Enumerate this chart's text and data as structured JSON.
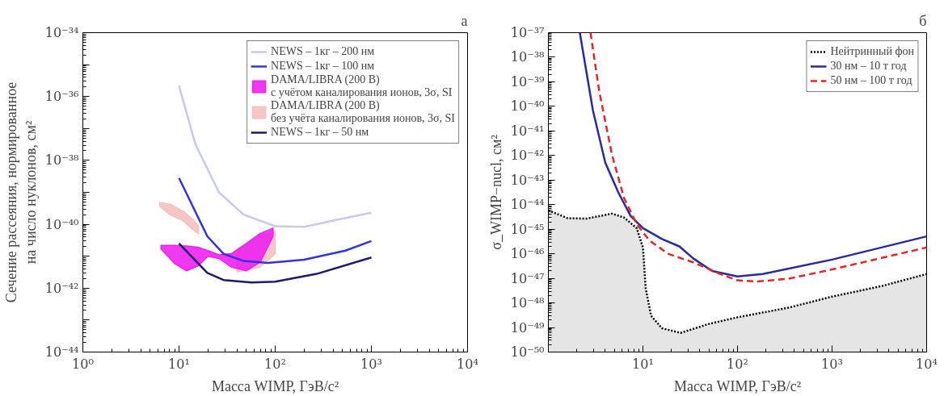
{
  "chart_data": [
    {
      "type": "line",
      "title": "а",
      "xlabel": "Масса WIMP, ГэВ/c²",
      "ylabel": "Сечение рассеяния, нормированное\nна число нуклонов, см²",
      "log": "xy",
      "grid": false,
      "legend": "top right",
      "xlim": [
        1,
        10000
      ],
      "ylim": [
        1e-44,
        1e-34
      ],
      "xticks": [
        {
          "value": 1,
          "label": "10⁰"
        },
        {
          "value": 10,
          "label": "10¹"
        },
        {
          "value": 100,
          "label": "10²"
        },
        {
          "value": 1000,
          "label": "10³"
        },
        {
          "value": 10000,
          "label": "10⁴"
        }
      ],
      "yticks": [
        {
          "value": 1e-44,
          "label": "10⁻⁴⁴"
        },
        {
          "value": 1e-43,
          "label": null
        },
        {
          "value": 1e-42,
          "label": "10⁻⁴²"
        },
        {
          "value": 1e-41,
          "label": null
        },
        {
          "value": 1e-40,
          "label": "10⁻⁴⁰"
        },
        {
          "value": 1e-39,
          "label": null
        },
        {
          "value": 1e-38,
          "label": "10⁻³⁸"
        },
        {
          "value": 1e-37,
          "label": null
        },
        {
          "value": 1e-36,
          "label": "10⁻³⁶"
        },
        {
          "value": 1e-35,
          "label": null
        },
        {
          "value": 1e-34,
          "label": "10⁻³⁴"
        }
      ],
      "series": [
        {
          "name": "NEWS – 1кг – 200 нм",
          "color": "#c8c8f0",
          "x": [
            10,
            14.8,
            26,
            47,
            100,
            200,
            400,
            1000
          ],
          "values": [
            2.2e-36,
            3.2e-38,
            1e-39,
            2e-40,
            8.7e-41,
            8.3e-41,
            1.3e-40,
            2.3e-40
          ]
        },
        {
          "name": "NEWS – 1кг – 100 нм",
          "color": "#3333dd",
          "x": [
            10,
            19.7,
            29,
            47,
            84,
            200,
            537,
            1000
          ],
          "values": [
            2.8e-39,
            4.2e-41,
            1.2e-41,
            7.1e-42,
            6.2e-42,
            7.8e-42,
            1.5e-41,
            3e-41
          ]
        },
        {
          "name": "DAMA/LIBRA (200 В)\nс учётом каналирования ионов, 3σ, SI",
          "type": "area",
          "color": "#ee22ee",
          "x": [
            6.5,
            9,
            12,
            16,
            20,
            26,
            35,
            50,
            70,
            95,
            95,
            70,
            50,
            35,
            26,
            20,
            16,
            12,
            9,
            6.5
          ],
          "values": [
            2.2e-41,
            2.2e-41,
            2.1e-41,
            1.9e-41,
            1.5e-41,
            1.1e-41,
            1.2e-41,
            2.5e-41,
            5.2e-41,
            7.6e-41,
            4.2e-41,
            6.6e-42,
            3.5e-42,
            4.6e-42,
            8.5e-42,
            1e-41,
            5.1e-42,
            3.5e-42,
            5.9e-42,
            1.7e-41
          ]
        },
        {
          "name": "DAMA/LIBRA (200 В)\nбез учёта каналирования ионов, 3σ, SI",
          "type": "area",
          "color": "#f5c0c0",
          "x": [
            6.3,
            8,
            11,
            14,
            16,
            16,
            14,
            11,
            8,
            6.3,
            25,
            40,
            70,
            100,
            100,
            70,
            40
          ],
          "values": [
            4.8e-40,
            4.3e-40,
            2.6e-40,
            1.4e-40,
            8.7e-41,
            5e-41,
            6.8e-41,
            1.3e-40,
            2e-40,
            3.7e-40,
            null,
            1.5e-41,
            4.2e-41,
            6e-41,
            1.2e-41,
            4.6e-42,
            3.2e-42
          ]
        },
        {
          "name": "NEWS – 1кг – 50 нм",
          "color": "#1a1a70",
          "x": [
            10,
            19.7,
            29,
            57,
            100,
            270,
            1000
          ],
          "values": [
            2.5e-41,
            3e-42,
            1.8e-42,
            1.5e-42,
            1.6e-42,
            2.8e-42,
            9.1e-42
          ]
        }
      ]
    },
    {
      "type": "line",
      "title": "б",
      "xlabel": "Масса WIMP, ГэВ/c²",
      "ylabel": "σ_WIMP−nucl, см²",
      "log": "xy",
      "grid": false,
      "legend": "top right",
      "xlim": [
        1,
        10000
      ],
      "ylim": [
        1e-50,
        1e-37
      ],
      "xticks": [
        {
          "value": 10,
          "label": "10¹"
        },
        {
          "value": 100,
          "label": "10²"
        },
        {
          "value": 1000,
          "label": "10³"
        },
        {
          "value": 10000,
          "label": "10⁴"
        }
      ],
      "yticks": [
        {
          "value": 1e-50,
          "label": "10⁻⁵⁰"
        },
        {
          "value": 1e-49,
          "label": "10⁻⁴⁹"
        },
        {
          "value": 1e-48,
          "label": "10⁻⁴⁸"
        },
        {
          "value": 1e-47,
          "label": "10⁻⁴⁷"
        },
        {
          "value": 1e-46,
          "label": "10⁻⁴⁶"
        },
        {
          "value": 1e-45,
          "label": "10⁻⁴⁵"
        },
        {
          "value": 1e-44,
          "label": "10⁻⁴⁴"
        },
        {
          "value": 1e-43,
          "label": "10⁻⁴³"
        },
        {
          "value": 1e-42,
          "label": "10⁻⁴²"
        },
        {
          "value": 1e-41,
          "label": "10⁻⁴¹"
        },
        {
          "value": 1e-40,
          "label": "10⁻⁴⁰"
        },
        {
          "value": 1e-39,
          "label": "10⁻³⁹"
        },
        {
          "value": 1e-38,
          "label": "10⁻³⁸"
        },
        {
          "value": 1e-37,
          "label": "10⁻³⁷"
        }
      ],
      "series": [
        {
          "name": "Нейтринный фон",
          "type": "area",
          "color": "#000000",
          "line_style": "dotted",
          "x": [
            1,
            1.6,
            2.54,
            4.7,
            6.3,
            8.6,
            10,
            10.7,
            12.2,
            15.9,
            25,
            50,
            100,
            340,
            1000,
            3390,
            10000
          ],
          "values": [
            5.8e-45,
            2.8e-45,
            2.7e-45,
            4.3e-45,
            3e-45,
            1.1e-45,
            1.8e-46,
            3.9e-48,
            3e-49,
            9.3e-50,
            6e-50,
            1.4e-49,
            2.6e-49,
            6.3e-49,
            1.8e-48,
            4.9e-48,
            1.5e-47
          ]
        },
        {
          "name": "30 нм – 10 т год",
          "color": "#2a2aa0",
          "line_style": "solid",
          "x": [
            2.15,
            2.96,
            4.0,
            5.5,
            7.4,
            10,
            15.9,
            24.3,
            34,
            54,
            100,
            185,
            1000,
            10000
          ],
          "values": [
            1e-37,
            6.8e-41,
            5.1e-43,
            3.1e-44,
            3.5e-45,
            1.1e-45,
            4e-46,
            2e-46,
            6.5e-47,
            2e-47,
            1.2e-47,
            1.5e-47,
            5.8e-47,
            5.1e-46
          ]
        },
        {
          "name": "50 нм – 100 т год",
          "color": "#ee2222",
          "line_style": "dashed",
          "x": [
            2.79,
            3.45,
            4.7,
            6.3,
            8.6,
            11.7,
            18.6,
            34,
            63,
            100,
            158,
            340,
            1000,
            10000
          ],
          "values": [
            1e-37,
            4.1e-40,
            1.1e-42,
            1.9e-44,
            1.6e-45,
            3.5e-46,
            9.8e-47,
            4.5e-47,
            1.6e-47,
            8.3e-48,
            7.4e-48,
            9.5e-48,
            2.3e-47,
            1.8e-46
          ]
        }
      ]
    }
  ]
}
